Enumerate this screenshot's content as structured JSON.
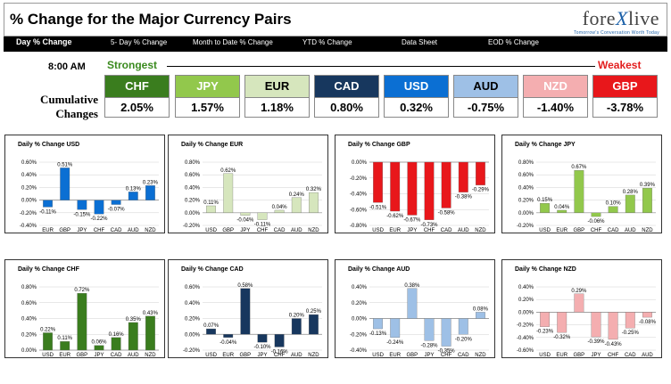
{
  "header": {
    "title": "% Change for the Major Currency Pairs",
    "logo_main": "fore",
    "logo_x": "X",
    "logo_end": "live",
    "logo_tagline": "Tomorrow's Conversation Worth Today"
  },
  "tabs": [
    {
      "label": "Day % Change",
      "active": true
    },
    {
      "label": "5- Day % Change",
      "active": false
    },
    {
      "label": "Month to Date % Change",
      "active": false
    },
    {
      "label": "YTD % Change",
      "active": false
    },
    {
      "label": "Data Sheet",
      "active": false
    },
    {
      "label": "EOD % Change",
      "active": false
    }
  ],
  "summary": {
    "time": "8:00 AM",
    "strongest_label": "Strongest",
    "weakest_label": "Weakest",
    "cumulative_label_1": "Cumulative",
    "cumulative_label_2": "Changes",
    "currencies": [
      {
        "code": "CHF",
        "value": "2.05%",
        "color": "#3a7d1e",
        "text_color": "#ffffff"
      },
      {
        "code": "JPY",
        "value": "1.57%",
        "color": "#92c84c",
        "text_color": "#ffffff"
      },
      {
        "code": "EUR",
        "value": "1.18%",
        "color": "#d6e6bd",
        "text_color": "#000000"
      },
      {
        "code": "CAD",
        "value": "0.80%",
        "color": "#17375e",
        "text_color": "#ffffff"
      },
      {
        "code": "USD",
        "value": "0.32%",
        "color": "#0b6fd3",
        "text_color": "#ffffff"
      },
      {
        "code": "AUD",
        "value": "-0.75%",
        "color": "#9ec0e6",
        "text_color": "#000000"
      },
      {
        "code": "NZD",
        "value": "-1.40%",
        "color": "#f4aeb0",
        "text_color": "#ffffff"
      },
      {
        "code": "GBP",
        "value": "-3.78%",
        "color": "#e8171b",
        "text_color": "#ffffff"
      }
    ]
  },
  "chart_data": [
    {
      "type": "bar",
      "title": "Daily % Change USD",
      "categories": [
        "EUR",
        "GBP",
        "JPY",
        "CHF",
        "CAD",
        "AUD",
        "NZD"
      ],
      "values": [
        -0.11,
        0.51,
        -0.15,
        -0.22,
        -0.07,
        0.13,
        0.23
      ],
      "ylim": [
        -0.4,
        0.6
      ],
      "ticks": [
        "0.60%",
        "0.40%",
        "0.20%",
        "0.00%",
        "-0.20%",
        "-0.40%"
      ],
      "labels": [
        "-0.11%",
        "0.51%",
        "-0.15%",
        "-0.22%",
        "-0.07%",
        "0.13%",
        "0.23%"
      ],
      "color": "#0b6fd3"
    },
    {
      "type": "bar",
      "title": "Daily % Change EUR",
      "categories": [
        "USD",
        "GBP",
        "JPY",
        "CHF",
        "CAD",
        "AUD",
        "NZD"
      ],
      "values": [
        0.11,
        0.62,
        -0.04,
        -0.11,
        0.04,
        0.24,
        0.32
      ],
      "ylim": [
        -0.2,
        0.8
      ],
      "ticks": [
        "0.80%",
        "0.60%",
        "0.40%",
        "0.20%",
        "0.00%",
        "-0.20%"
      ],
      "labels": [
        "0.11%",
        "0.62%",
        "-0.04%",
        "-0.11%",
        "0.04%",
        "0.24%",
        "0.32%"
      ],
      "color": "#d6e6bd"
    },
    {
      "type": "bar",
      "title": "Daily % Change GBP",
      "categories": [
        "USD",
        "EUR",
        "JPY",
        "CHF",
        "CAD",
        "AUD",
        "NZD"
      ],
      "values": [
        -0.51,
        -0.62,
        -0.67,
        -0.73,
        -0.58,
        -0.38,
        -0.29
      ],
      "ylim": [
        -0.8,
        0.0
      ],
      "ticks": [
        "0.00%",
        "-0.20%",
        "-0.40%",
        "-0.60%",
        "-0.80%"
      ],
      "labels": [
        "-0.51%",
        "-0.62%",
        "-0.67%",
        "-0.73%",
        "-0.58%",
        "-0.38%",
        "-0.29%"
      ],
      "color": "#e8171b"
    },
    {
      "type": "bar",
      "title": "Daily % Change JPY",
      "categories": [
        "USD",
        "EUR",
        "GBP",
        "CHF",
        "CAD",
        "AUD",
        "NZD"
      ],
      "values": [
        0.15,
        0.04,
        0.67,
        -0.06,
        0.1,
        0.28,
        0.39
      ],
      "ylim": [
        -0.2,
        0.8
      ],
      "ticks": [
        "0.80%",
        "0.60%",
        "0.40%",
        "0.20%",
        "0.00%",
        "-0.20%"
      ],
      "labels": [
        "0.15%",
        "0.04%",
        "0.67%",
        "-0.06%",
        "0.10%",
        "0.28%",
        "0.39%"
      ],
      "color": "#92c84c"
    },
    {
      "type": "bar",
      "title": "Daily % Change CHF",
      "categories": [
        "USD",
        "EUR",
        "GBP",
        "JPY",
        "CAD",
        "AUD",
        "NZD"
      ],
      "values": [
        0.22,
        0.11,
        0.72,
        0.06,
        0.16,
        0.35,
        0.43
      ],
      "ylim": [
        0.0,
        0.8
      ],
      "ticks": [
        "0.80%",
        "0.60%",
        "0.40%",
        "0.20%",
        "0.00%"
      ],
      "labels": [
        "0.22%",
        "0.11%",
        "0.72%",
        "0.06%",
        "0.16%",
        "0.35%",
        "0.43%"
      ],
      "color": "#3a7d1e"
    },
    {
      "type": "bar",
      "title": "Daily % Change CAD",
      "categories": [
        "USD",
        "EUR",
        "GBP",
        "JPY",
        "CHF",
        "AUD",
        "NZD"
      ],
      "values": [
        0.07,
        -0.04,
        0.58,
        -0.1,
        -0.16,
        0.2,
        0.25
      ],
      "ylim": [
        -0.2,
        0.6
      ],
      "ticks": [
        "0.60%",
        "0.40%",
        "0.20%",
        "0.00%",
        "-0.20%"
      ],
      "labels": [
        "0.07%",
        "-0.04%",
        "0.58%",
        "-0.10%",
        "-0.16%",
        "0.20%",
        "0.25%"
      ],
      "color": "#17375e"
    },
    {
      "type": "bar",
      "title": "Daily % Change AUD",
      "categories": [
        "USD",
        "EUR",
        "GBP",
        "JPY",
        "CHF",
        "CAD",
        "NZD"
      ],
      "values": [
        -0.13,
        -0.24,
        0.38,
        -0.28,
        -0.35,
        -0.2,
        0.08
      ],
      "ylim": [
        -0.4,
        0.4
      ],
      "ticks": [
        "0.40%",
        "0.20%",
        "0.00%",
        "-0.20%",
        "-0.40%"
      ],
      "labels": [
        "-0.13%",
        "-0.24%",
        "0.38%",
        "-0.28%",
        "-0.35%",
        "-0.20%",
        "0.08%"
      ],
      "color": "#9ec0e6"
    },
    {
      "type": "bar",
      "title": "Daily % Change NZD",
      "categories": [
        "USD",
        "EUR",
        "GBP",
        "JPY",
        "CHF",
        "CAD",
        "AUD"
      ],
      "values": [
        -0.23,
        -0.32,
        0.29,
        -0.39,
        -0.43,
        -0.25,
        -0.08
      ],
      "ylim": [
        -0.6,
        0.4
      ],
      "ticks": [
        "0.40%",
        "0.20%",
        "0.00%",
        "-0.20%",
        "-0.40%",
        "-0.60%"
      ],
      "labels": [
        "-0.23%",
        "-0.32%",
        "0.29%",
        "-0.39%",
        "-0.43%",
        "-0.25%",
        "-0.08%"
      ],
      "color": "#f4aeb0"
    }
  ]
}
